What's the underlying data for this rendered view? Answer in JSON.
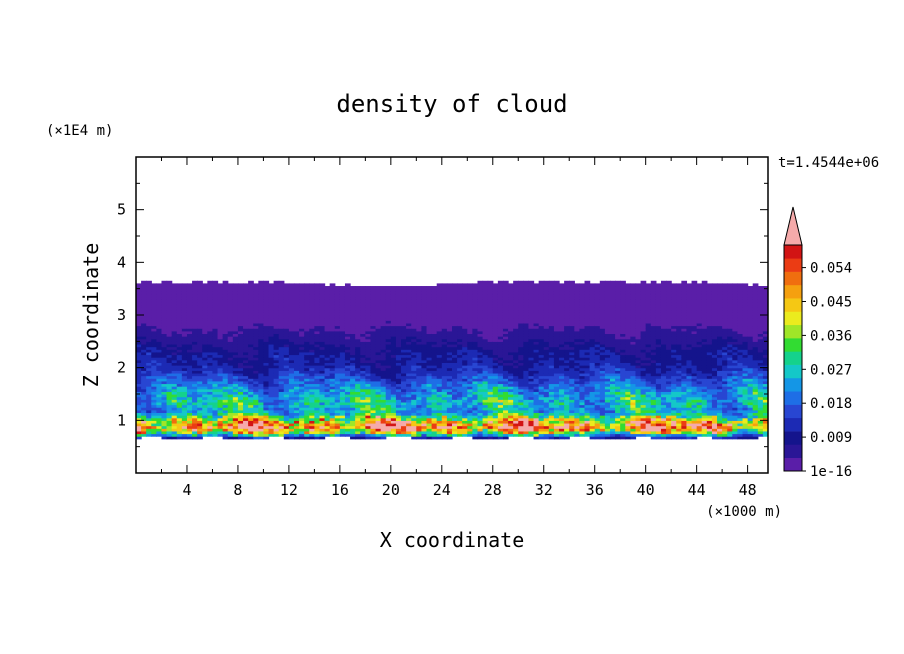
{
  "chart_data": {
    "type": "heatmap",
    "title": "density of cloud",
    "xlabel": "X coordinate",
    "ylabel": "Z coordinate",
    "x_unit": "(×1000 m)",
    "y_unit": "(×1E4 m)",
    "time_label": "t=1.4544e+06",
    "xlim": [
      0,
      49.6
    ],
    "ylim": [
      0,
      6
    ],
    "x_ticks": [
      4,
      8,
      12,
      16,
      20,
      24,
      28,
      32,
      36,
      40,
      44,
      48
    ],
    "x_tick_labels": [
      "4",
      "8",
      "12",
      "16",
      "20",
      "24",
      "28",
      "32",
      "36",
      "40",
      "44",
      "48"
    ],
    "y_ticks": [
      1,
      2,
      3,
      4,
      5
    ],
    "y_tick_labels": [
      "1",
      "2",
      "3",
      "4",
      "5"
    ],
    "colorbar": {
      "min": 0,
      "max": 0.06,
      "extend": "max",
      "level_labels": [
        "1e-16",
        "0.009",
        "0.018",
        "0.027",
        "0.036",
        "0.045",
        "0.054"
      ],
      "level_values": [
        0,
        0.009,
        0.018,
        0.027,
        0.036,
        0.045,
        0.054
      ],
      "colors": [
        "#5a1ea8",
        "#2a1696",
        "#14148c",
        "#1c2ab4",
        "#2846d2",
        "#1e6ee6",
        "#1496e6",
        "#14c8c8",
        "#14d28c",
        "#32dc32",
        "#a0e628",
        "#ebeb1e",
        "#f5c814",
        "#f5a00f",
        "#f06e0f",
        "#eb3c14",
        "#d21414"
      ],
      "over_color": "#f5aaaa"
    },
    "cloud_layer": {
      "base_z": 0.65,
      "top_z": 3.65,
      "dense_band_z": [
        0.7,
        1.1
      ],
      "peak_density_z": 0.9
    },
    "vertical_profile": [
      {
        "z": 0.68,
        "value": 0.012
      },
      {
        "z": 0.78,
        "value": 0.036
      },
      {
        "z": 0.88,
        "value": 0.054
      },
      {
        "z": 0.98,
        "value": 0.045
      },
      {
        "z": 1.08,
        "value": 0.03
      },
      {
        "z": 1.2,
        "value": 0.024
      },
      {
        "z": 1.35,
        "value": 0.027
      },
      {
        "z": 1.5,
        "value": 0.024
      },
      {
        "z": 1.65,
        "value": 0.02
      },
      {
        "z": 1.8,
        "value": 0.016
      },
      {
        "z": 1.95,
        "value": 0.012
      },
      {
        "z": 2.1,
        "value": 0.01
      },
      {
        "z": 2.3,
        "value": 0.009
      },
      {
        "z": 2.5,
        "value": 0.006
      },
      {
        "z": 2.7,
        "value": 0.004
      },
      {
        "z": 2.9,
        "value": 0.002
      },
      {
        "z": 3.2,
        "value": 0.001
      },
      {
        "z": 3.5,
        "value": 0.0005
      }
    ]
  }
}
